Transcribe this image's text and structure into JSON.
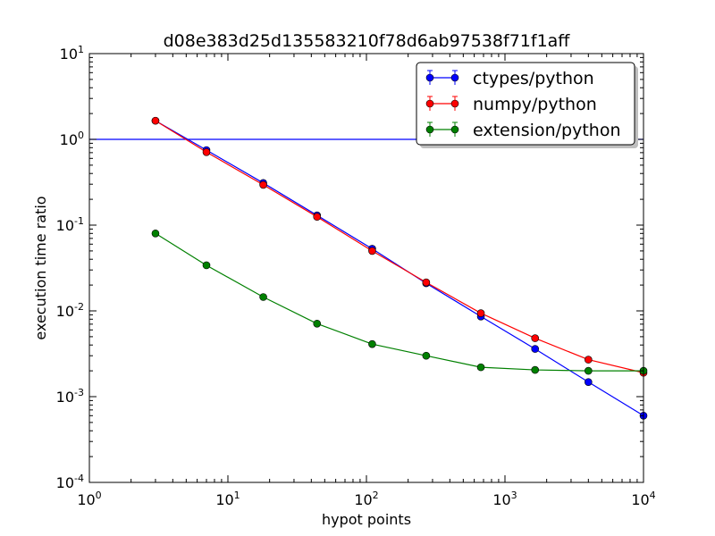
{
  "chart_data": {
    "type": "line",
    "title": "d08e383d25d135583210f78d6ab97538f71f1aff",
    "xlabel": "hypot points",
    "ylabel": "execution time ratio",
    "xscale": "log",
    "yscale": "log",
    "xlim": [
      1,
      10000
    ],
    "ylim": [
      0.0001,
      10
    ],
    "x_ticks": [
      {
        "base": "10",
        "exp": "0"
      },
      {
        "base": "10",
        "exp": "1"
      },
      {
        "base": "10",
        "exp": "2"
      },
      {
        "base": "10",
        "exp": "3"
      },
      {
        "base": "10",
        "exp": "4"
      }
    ],
    "y_ticks": [
      {
        "base": "10",
        "exp": "-4"
      },
      {
        "base": "10",
        "exp": "-3"
      },
      {
        "base": "10",
        "exp": "-2"
      },
      {
        "base": "10",
        "exp": "-1"
      },
      {
        "base": "10",
        "exp": "0"
      },
      {
        "base": "10",
        "exp": "1"
      }
    ],
    "grid": false,
    "legend_position": "top-right",
    "reference_line": {
      "y": 1.0,
      "color": "#0000ff"
    },
    "series": [
      {
        "name": "ctypes/python",
        "color": "#0000ff",
        "x": [
          3,
          7,
          18,
          44,
          110,
          270,
          670,
          1650,
          4000,
          10000
        ],
        "y": [
          1.65,
          0.75,
          0.31,
          0.13,
          0.053,
          0.021,
          0.0086,
          0.0036,
          0.00148,
          0.0006
        ]
      },
      {
        "name": "numpy/python",
        "color": "#ff0000",
        "x": [
          3,
          7,
          18,
          44,
          110,
          270,
          670,
          1650,
          4000,
          10000
        ],
        "y": [
          1.65,
          0.71,
          0.295,
          0.125,
          0.05,
          0.0215,
          0.0094,
          0.0048,
          0.0027,
          0.0019
        ]
      },
      {
        "name": "extension/python",
        "color": "#008000",
        "x": [
          3,
          7,
          18,
          44,
          110,
          270,
          670,
          1650,
          4000,
          10000
        ],
        "y": [
          0.08,
          0.034,
          0.0145,
          0.0071,
          0.0041,
          0.003,
          0.0022,
          0.00205,
          0.002,
          0.002
        ]
      }
    ]
  }
}
